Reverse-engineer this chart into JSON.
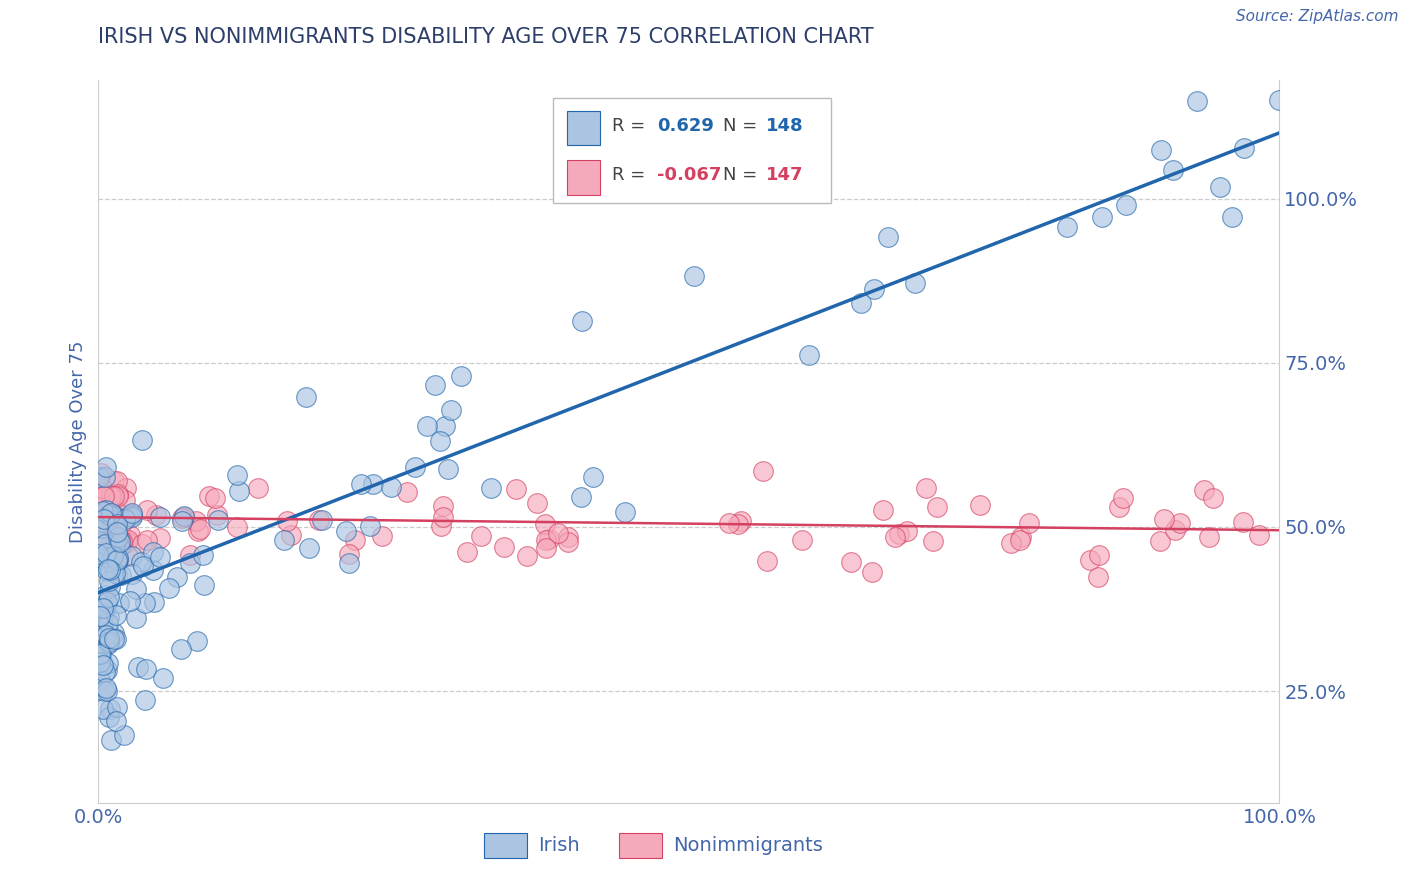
{
  "title": "IRISH VS NONIMMIGRANTS DISABILITY AGE OVER 75 CORRELATION CHART",
  "source": "Source: ZipAtlas.com",
  "ylabel": "Disability Age Over 75",
  "xlim": [
    0.0,
    1.0
  ],
  "ylim": [
    0.08,
    1.18
  ],
  "irish_R": 0.629,
  "irish_N": 148,
  "nonimm_R": -0.067,
  "nonimm_N": 147,
  "irish_color": "#aac4e2",
  "irish_line_color": "#2166ac",
  "nonimm_color": "#f5aabc",
  "nonimm_line_color": "#d44060",
  "legend_label_irish": "Irish",
  "legend_label_nonimm": "Nonimmigrants",
  "background_color": "#ffffff",
  "grid_color": "#cccccc",
  "title_color": "#2c3e6a",
  "tick_label_color": "#4466aa",
  "irish_trend_y0": 0.4,
  "irish_trend_y1": 1.1,
  "nonimm_trend_y0": 0.515,
  "nonimm_trend_y1": 0.495,
  "ytick_vals": [
    0.25,
    0.5,
    0.75,
    1.0
  ],
  "ytick_labels": [
    "25.0%",
    "50.0%",
    "75.0%",
    "100.0%"
  ]
}
